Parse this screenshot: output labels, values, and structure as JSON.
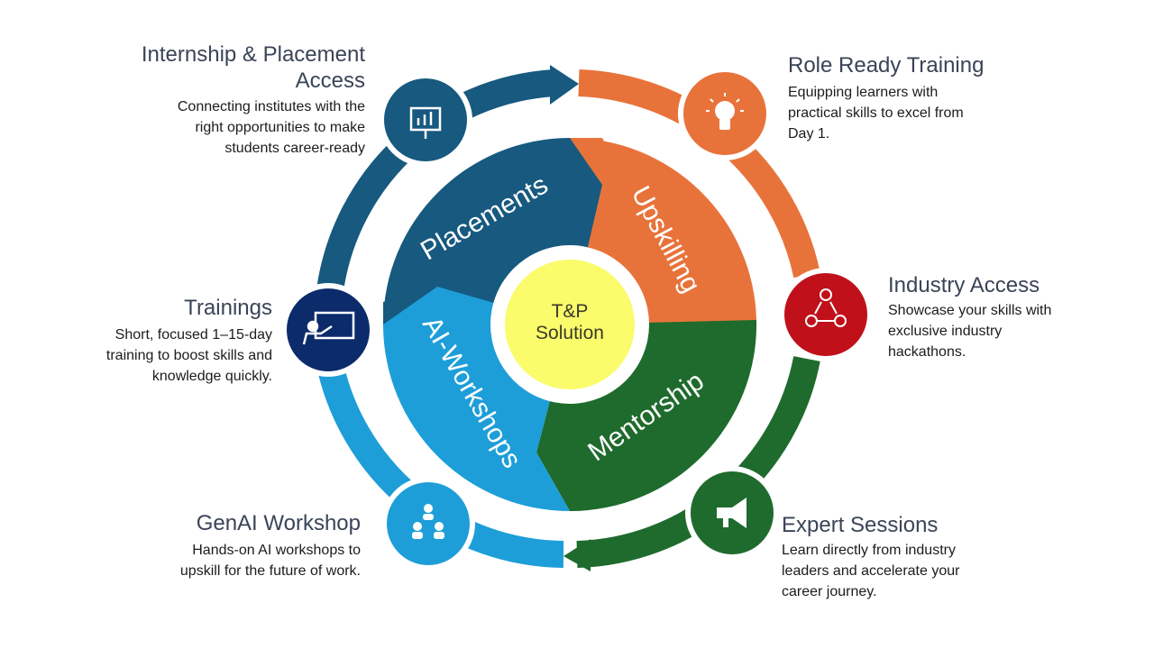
{
  "center": {
    "line1": "T&P",
    "line2": "Solution"
  },
  "segments": [
    {
      "label": "Placements",
      "color": "#17597f"
    },
    {
      "label": "Upskilling",
      "color": "#e8733a"
    },
    {
      "label": "Mentorship",
      "color": "#1e6b2d"
    },
    {
      "label": "AI-Workshops",
      "color": "#1d9ed8"
    }
  ],
  "features": {
    "internship": {
      "title_line1": "Internship & Placement",
      "title_line2": "Access",
      "desc_line1": "Connecting institutes with the",
      "desc_line2": "right opportunities to make",
      "desc_line3": "students career-ready",
      "icon": "presentation-chart-icon",
      "color": "#17597f"
    },
    "role_ready": {
      "title": "Role Ready Training",
      "desc_line1": "Equipping learners with",
      "desc_line2": "practical skills to excel from",
      "desc_line3": "Day 1.",
      "icon": "lightbulb-icon",
      "color": "#e8733a"
    },
    "industry": {
      "title": "Industry Access",
      "desc_line1": "Showcase your skills with",
      "desc_line2": "exclusive industry",
      "desc_line3": "hackathons.",
      "icon": "network-people-icon",
      "color": "#c0111b"
    },
    "trainings": {
      "title": "Trainings",
      "desc_line1": "Short, focused 1–15-day",
      "desc_line2": "training to boost skills and",
      "desc_line3": "knowledge quickly.",
      "icon": "teacher-board-icon",
      "color": "#0b2b6b"
    },
    "genai": {
      "title": "GenAI Workshop",
      "desc_line1": "Hands-on AI workshops to",
      "desc_line2": "upskill for the future of work.",
      "icon": "group-icon",
      "color": "#1d9ed8"
    },
    "expert": {
      "title": "Expert Sessions",
      "desc_line1": "Learn directly from industry",
      "desc_line2": "leaders and accelerate your",
      "desc_line3": "career journey.",
      "icon": "megaphone-icon",
      "color": "#1e6b2d"
    }
  }
}
